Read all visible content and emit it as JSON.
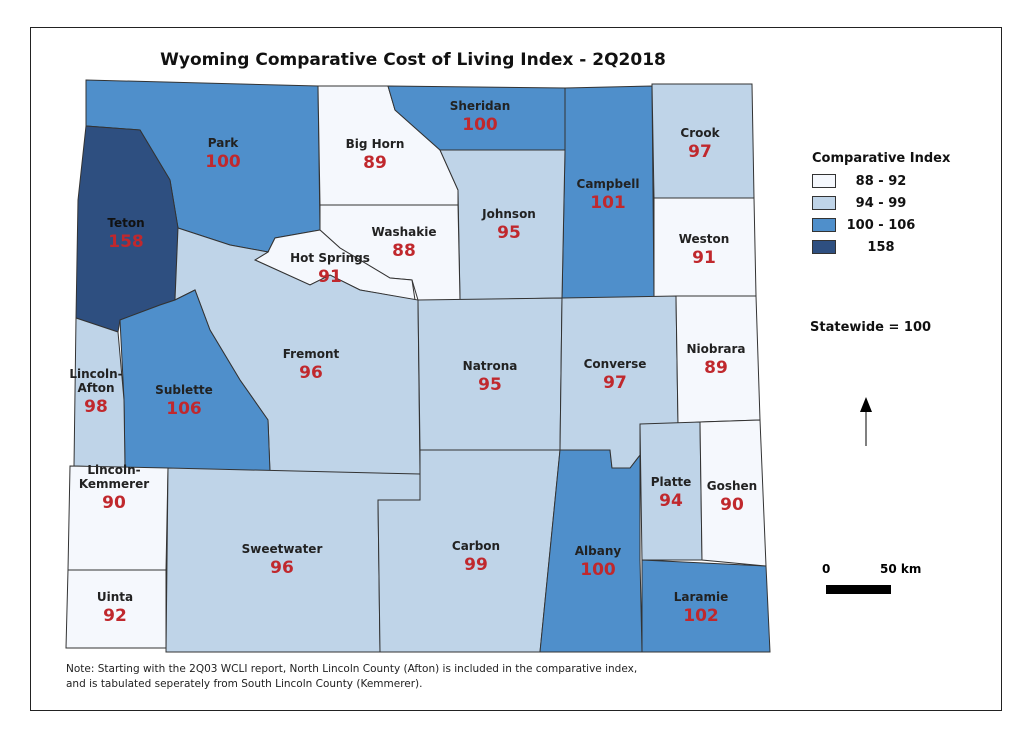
{
  "title": "Wyoming Comparative Cost of Living Index - 2Q2018",
  "legend": {
    "title": "Comparative Index",
    "classes": [
      {
        "label": "88 - 92",
        "color": "#f5f8fd"
      },
      {
        "label": "94 - 99",
        "color": "#bfd4e8"
      },
      {
        "label": "100 - 106",
        "color": "#4f8fcb"
      },
      {
        "label": "158",
        "color": "#2e4f80"
      }
    ]
  },
  "statewide": "Statewide = 100",
  "scale": {
    "start": "0",
    "end": "50 km"
  },
  "north_arrow": "north-arrow-icon",
  "value_color": "#c0282d",
  "counties": [
    {
      "name": "Park",
      "value": "100",
      "class": 2
    },
    {
      "name": "Teton",
      "value": "158",
      "class": 3
    },
    {
      "name": "Big Horn",
      "value": "89",
      "class": 0
    },
    {
      "name": "Sheridan",
      "value": "100",
      "class": 2
    },
    {
      "name": "Campbell",
      "value": "101",
      "class": 2
    },
    {
      "name": "Crook",
      "value": "97",
      "class": 1
    },
    {
      "name": "Weston",
      "value": "91",
      "class": 0
    },
    {
      "name": "Johnson",
      "value": "95",
      "class": 1
    },
    {
      "name": "Washakie",
      "value": "88",
      "class": 0
    },
    {
      "name": "Hot Springs",
      "value": "91",
      "class": 0
    },
    {
      "name": "Fremont",
      "value": "96",
      "class": 1
    },
    {
      "name": "Sublette",
      "value": "106",
      "class": 2
    },
    {
      "name": "Lincoln-\nAfton",
      "value": "98",
      "class": 1
    },
    {
      "name": "Lincoln-\nKemmerer",
      "value": "90",
      "class": 0
    },
    {
      "name": "Uinta",
      "value": "92",
      "class": 0
    },
    {
      "name": "Sweetwater",
      "value": "96",
      "class": 1
    },
    {
      "name": "Carbon",
      "value": "99",
      "class": 1
    },
    {
      "name": "Albany",
      "value": "100",
      "class": 2
    },
    {
      "name": "Laramie",
      "value": "102",
      "class": 2
    },
    {
      "name": "Natrona",
      "value": "95",
      "class": 1
    },
    {
      "name": "Converse",
      "value": "97",
      "class": 1
    },
    {
      "name": "Niobrara",
      "value": "89",
      "class": 0
    },
    {
      "name": "Platte",
      "value": "94",
      "class": 1
    },
    {
      "name": "Goshen",
      "value": "90",
      "class": 0
    }
  ],
  "note": {
    "line1": "Note: Starting with the 2Q03 WCLI report, North Lincoln County (Afton) is included in the comparative index,",
    "line2": "and is tabulated seperately from South Lincoln County (Kemmerer)."
  }
}
